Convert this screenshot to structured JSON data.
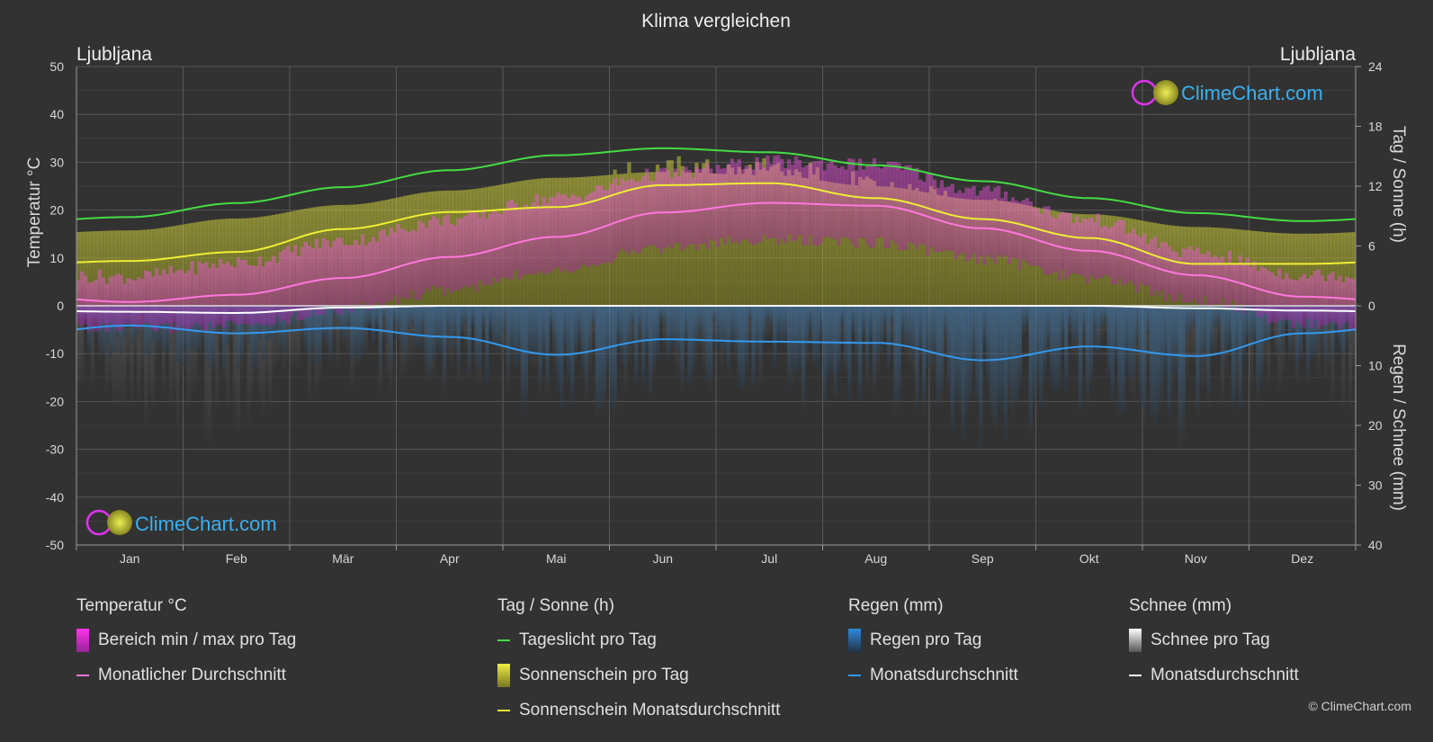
{
  "title": "Klima vergleichen",
  "city_left": "Ljubljana",
  "city_right": "Ljubljana",
  "logo_text": "ClimeChart.com",
  "copyright": "© ClimeChart.com",
  "colors": {
    "background": "#323232",
    "daylight": "#44dd44",
    "sunshine_avg": "#eeee33",
    "temp_avg": "#ff77dd",
    "rain_avg": "#3399ee",
    "snow_avg": "#ffffff",
    "temp_range": "#dd33cc",
    "sunshine_fill": "#b0b030",
    "rain_fill": "#2a6fa8",
    "snow_fill": "#9a9a9a",
    "logo": "#3ab0f0"
  },
  "chart_data": {
    "type": "area",
    "categories": [
      "Jan",
      "Feb",
      "Mär",
      "Apr",
      "Mai",
      "Jun",
      "Jul",
      "Aug",
      "Sep",
      "Okt",
      "Nov",
      "Dez"
    ],
    "y_left": {
      "label": "Temperatur °C",
      "range": [
        -50,
        50
      ],
      "ticks": [
        50,
        40,
        30,
        20,
        10,
        0,
        -10,
        -20,
        -30,
        -40,
        -50
      ]
    },
    "y_right_top": {
      "label": "Tag / Sonne (h)",
      "range": [
        0,
        24
      ],
      "ticks": [
        24,
        18,
        12,
        6,
        0
      ]
    },
    "y_right_bottom": {
      "label": "Regen / Schnee (mm)",
      "range": [
        0,
        40
      ],
      "ticks": [
        10,
        20,
        30,
        40
      ]
    },
    "grid": true,
    "series": [
      {
        "name": "Tageslicht pro Tag",
        "unit": "h",
        "values": [
          8.9,
          10.3,
          11.9,
          13.6,
          15.1,
          15.8,
          15.4,
          14.1,
          12.5,
          10.8,
          9.3,
          8.5
        ]
      },
      {
        "name": "Sonnenschein Monatsdurchschnitt",
        "unit": "h",
        "values": [
          4.5,
          5.4,
          7.7,
          9.4,
          9.9,
          12.1,
          12.3,
          10.8,
          8.7,
          6.8,
          4.2,
          4.2
        ]
      },
      {
        "name": "Monatlicher Durchschnitt",
        "unit": "°C",
        "values": [
          0.8,
          2.3,
          5.8,
          10.2,
          14.4,
          19.5,
          21.5,
          20.9,
          16.2,
          11.5,
          6.4,
          1.9
        ]
      },
      {
        "name": "Bereich min / max pro Tag",
        "unit": "°C",
        "min": [
          -3.5,
          -3.0,
          0.5,
          4.5,
          9.0,
          13.5,
          15.0,
          14.5,
          11.0,
          7.0,
          2.5,
          -2.5
        ],
        "max": [
          4.5,
          7.5,
          12.0,
          16.5,
          21.0,
          26.0,
          28.5,
          28.0,
          22.5,
          16.5,
          9.5,
          5.0
        ]
      },
      {
        "name": "Regen Monatsdurchschnitt",
        "unit": "mm",
        "values": [
          3.3,
          4.6,
          3.7,
          5.2,
          8.2,
          5.6,
          6.0,
          6.2,
          9.1,
          6.8,
          8.4,
          4.6
        ]
      },
      {
        "name": "Schnee Monatsdurchschnitt",
        "unit": "mm",
        "values": [
          1.0,
          1.2,
          0.3,
          0.0,
          0.0,
          0.0,
          0.0,
          0.0,
          0.0,
          0.0,
          0.4,
          0.8
        ]
      }
    ]
  },
  "legend": {
    "temperature": {
      "title": "Temperatur °C",
      "range": "Bereich min / max pro Tag",
      "avg": "Monatlicher Durchschnitt"
    },
    "sun": {
      "title": "Tag / Sonne (h)",
      "daylight": "Tageslicht pro Tag",
      "sunshine": "Sonnenschein pro Tag",
      "sunshine_avg": "Sonnenschein Monatsdurchschnitt"
    },
    "rain": {
      "title": "Regen (mm)",
      "rain_day": "Regen pro Tag",
      "avg": "Monatsdurchschnitt"
    },
    "snow": {
      "title": "Schnee (mm)",
      "snow_day": "Schnee pro Tag",
      "avg": "Monatsdurchschnitt"
    }
  }
}
